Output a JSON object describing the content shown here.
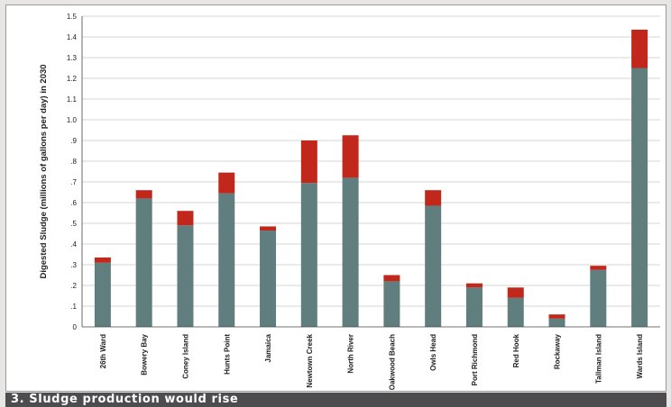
{
  "caption": "3. Sludge production would rise",
  "colors": {
    "base": "#5f7e7d",
    "increase": "#c1271b",
    "grid": "#c8c8c8",
    "axis": "#444444",
    "caption_bar": "#4d4d4f",
    "frame": "#e8e6e4"
  },
  "chart_data": {
    "type": "bar",
    "stacked": true,
    "title": "",
    "xlabel": "",
    "ylabel": "Digested Sludge (millions of gallons per day) in 2030",
    "ylim": [
      0,
      1.5
    ],
    "yticks": [
      0,
      0.1,
      0.2,
      0.3,
      0.4,
      0.5,
      0.6,
      0.7,
      0.8,
      0.9,
      1.0,
      1.1,
      1.2,
      1.3,
      1.4,
      1.5
    ],
    "ytick_labels": [
      "0",
      ".1",
      ".2",
      ".3",
      ".4",
      ".5",
      ".6",
      ".7",
      ".8",
      ".9",
      "1.0",
      "1.1",
      "1.2",
      "1.3",
      "1.4",
      "1.5"
    ],
    "grid": true,
    "categories": [
      "26th Ward",
      "Bowery Bay",
      "Coney Island",
      "Hunts Point",
      "Jamaica",
      "Newtown Creek",
      "North River",
      "Oakwood Beach",
      "Owls Head",
      "Port Richmond",
      "Red Hook",
      "Rockaway",
      "Tallman Island",
      "Wards Island"
    ],
    "series": [
      {
        "values": [
          0.31,
          0.62,
          0.49,
          0.645,
          0.465,
          0.695,
          0.72,
          0.22,
          0.585,
          0.19,
          0.14,
          0.04,
          0.275,
          1.25
        ]
      },
      {
        "values": [
          0.025,
          0.04,
          0.07,
          0.1,
          0.02,
          0.205,
          0.205,
          0.03,
          0.075,
          0.02,
          0.05,
          0.02,
          0.02,
          0.185
        ]
      }
    ]
  }
}
